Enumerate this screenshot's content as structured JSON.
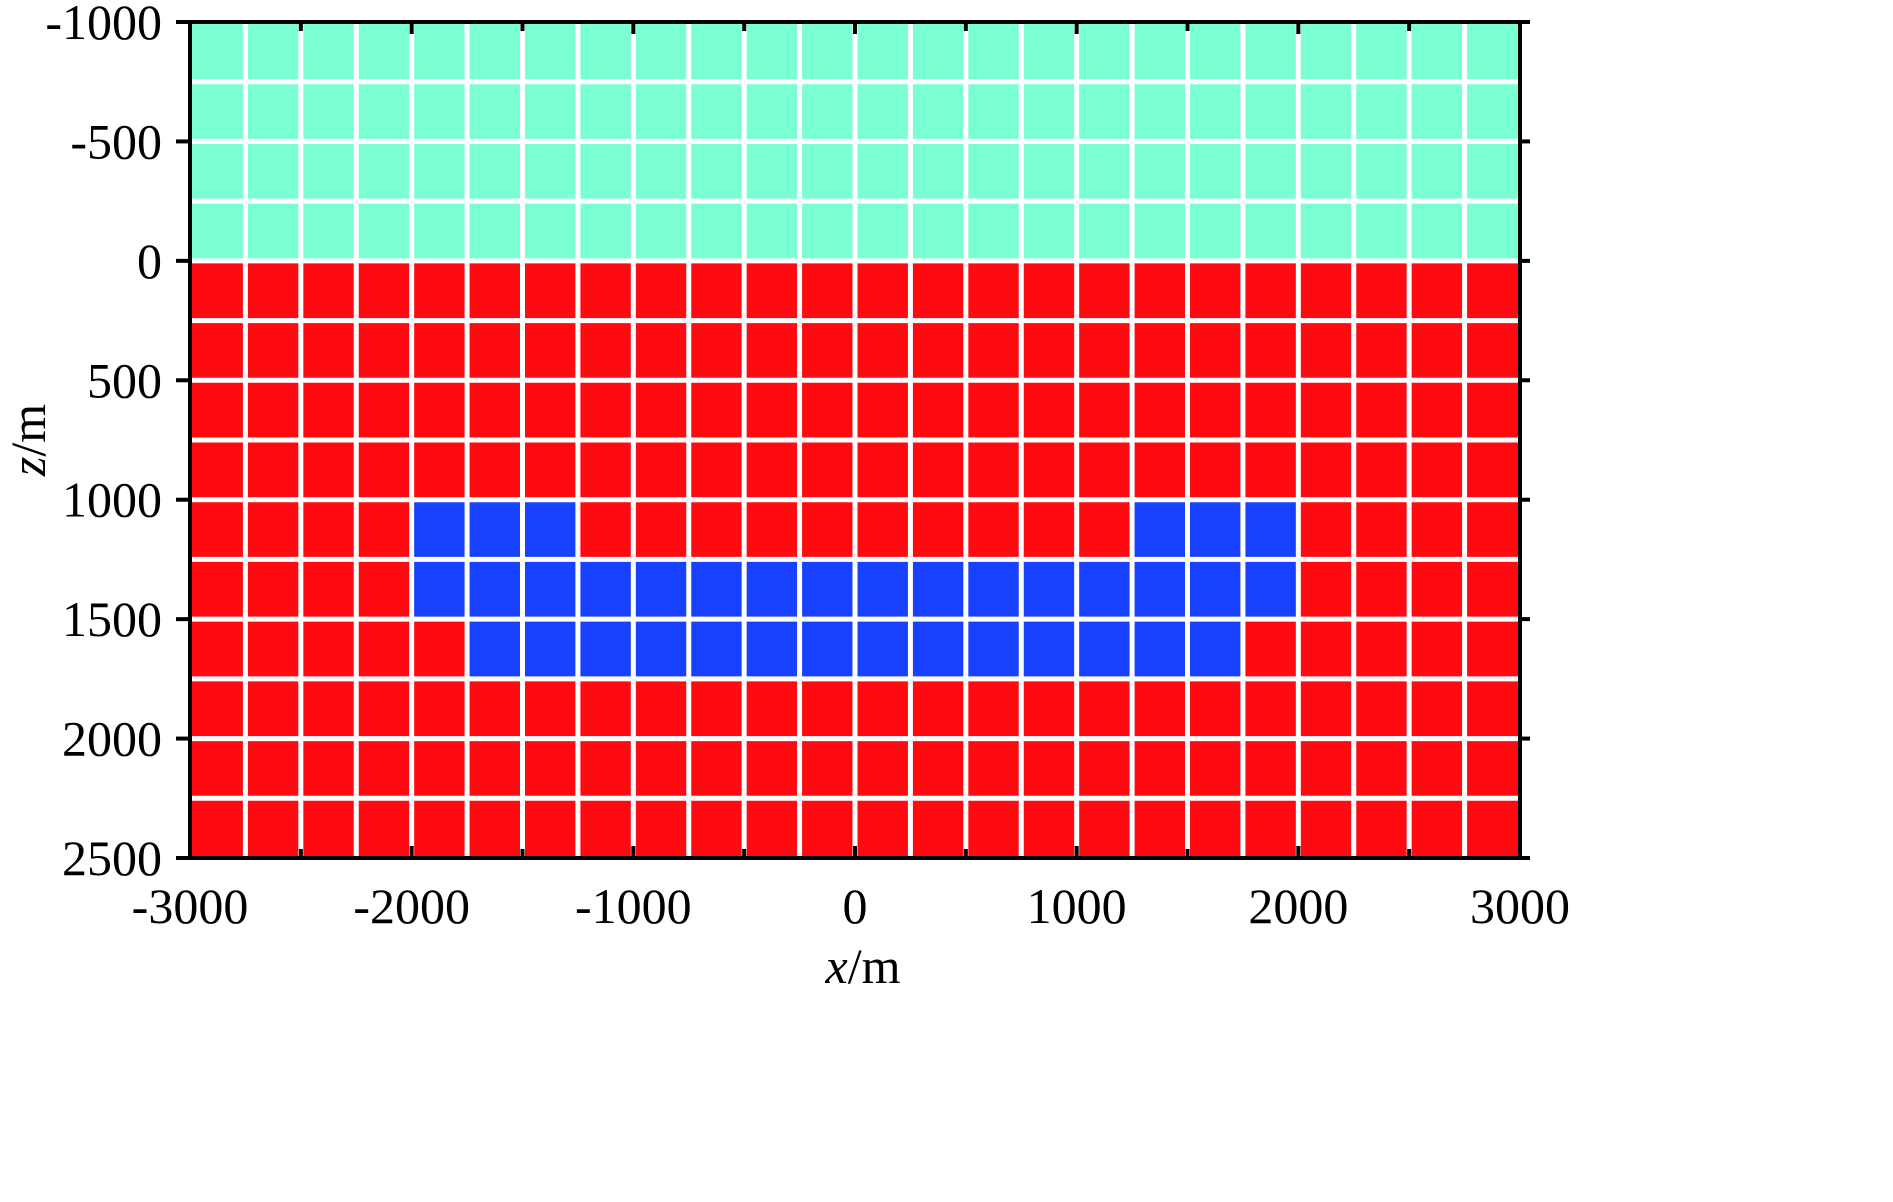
{
  "chart_data": {
    "type": "heatmap",
    "xlabel": {
      "var": "x",
      "unit": "/m"
    },
    "ylabel": {
      "var": "z",
      "unit": "/m"
    },
    "xlim": [
      -3000,
      3000
    ],
    "ylim": [
      -1000,
      2500
    ],
    "y_inverted": true,
    "x_ticks": [
      -3000,
      -2000,
      -1000,
      0,
      1000,
      2000,
      3000
    ],
    "y_ticks": [
      -1000,
      -500,
      0,
      500,
      1000,
      1500,
      2000,
      2500
    ],
    "x_ticks_minor": [
      -2500,
      -1500,
      -500,
      500,
      1500,
      2500
    ],
    "cell_size": {
      "dx": 250,
      "dz": 250
    },
    "grid_lines": "white",
    "colors": {
      "air": "#79FFD2",
      "background": "#FF0A10",
      "anomaly": "#1740FF",
      "grid": "#ffffff",
      "axis": "#000000"
    },
    "regions": [
      {
        "material": "air",
        "x": [
          -3000,
          3000
        ],
        "z": [
          -1000,
          0
        ]
      },
      {
        "material": "background",
        "x": [
          -3000,
          3000
        ],
        "z": [
          0,
          2500
        ]
      },
      {
        "material": "anomaly",
        "x": [
          -2000,
          -1250
        ],
        "z": [
          1000,
          1250
        ]
      },
      {
        "material": "anomaly",
        "x": [
          1250,
          2000
        ],
        "z": [
          1000,
          1250
        ]
      },
      {
        "material": "anomaly",
        "x": [
          -2000,
          2000
        ],
        "z": [
          1250,
          1500
        ]
      },
      {
        "material": "anomaly",
        "x": [
          -1750,
          1750
        ],
        "z": [
          1500,
          1750
        ]
      }
    ]
  }
}
